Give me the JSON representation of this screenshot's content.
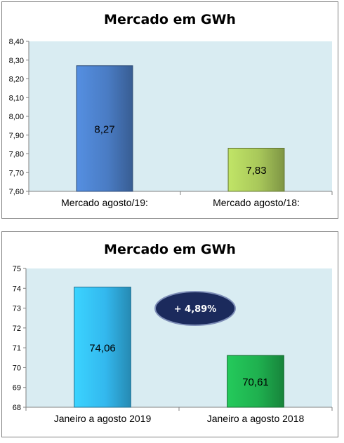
{
  "chart_data": [
    {
      "type": "bar",
      "title": "Mercado em GWh",
      "categories": [
        "Mercado agosto/19:",
        "Mercado agosto/18:"
      ],
      "values": [
        8.27,
        7.83
      ],
      "value_labels": [
        "8,27",
        "7,83"
      ],
      "ylim": [
        7.6,
        8.4
      ],
      "yticks": [
        7.6,
        7.7,
        7.8,
        7.9,
        8.0,
        8.1,
        8.2,
        8.3,
        8.4
      ],
      "ytick_labels": [
        "7,60",
        "7,70",
        "7,80",
        "7,90",
        "8,00",
        "8,10",
        "8,20",
        "8,30",
        "8,40"
      ],
      "bar_colors": [
        "#4a7cc4",
        "#a8c75a"
      ],
      "plot_background": "#d9ecf2",
      "grid": false,
      "xlabel": "",
      "ylabel": ""
    },
    {
      "type": "bar",
      "title": "Mercado em GWh",
      "categories": [
        "Janeiro a agosto 2019",
        "Janeiro a agosto 2018"
      ],
      "values": [
        74.06,
        70.61
      ],
      "value_labels": [
        "74,06",
        "70,61"
      ],
      "ylim": [
        68,
        75
      ],
      "yticks": [
        68,
        69,
        70,
        71,
        72,
        73,
        74,
        75
      ],
      "ytick_labels": [
        "68",
        "69",
        "70",
        "71",
        "72",
        "73",
        "74",
        "75"
      ],
      "bar_colors": [
        "#33b8ee",
        "#1fb04f"
      ],
      "plot_background": "#d9ecf2",
      "grid": false,
      "annotation": "+ 4,89%",
      "annotation_color": "#1b2a5c",
      "xlabel": "",
      "ylabel": ""
    }
  ]
}
